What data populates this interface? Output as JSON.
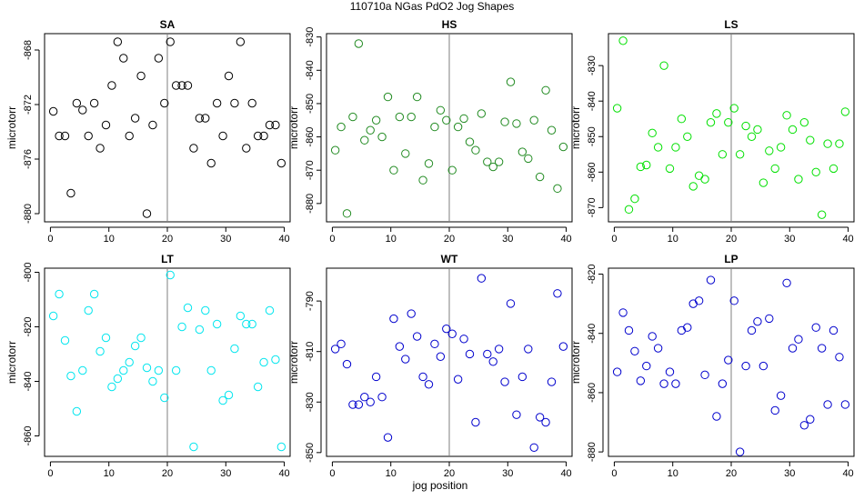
{
  "figure": {
    "title": "110710a   NGas PdO2 Jog Shapes",
    "xlabel": "jog position"
  },
  "chart_data": [
    {
      "type": "scatter",
      "title": "SA",
      "ylabel": "microtorr",
      "color": "#000000",
      "xlim": [
        -1,
        41
      ],
      "ylim": [
        -880.6,
        -866.8
      ],
      "xticks": [
        0,
        10,
        20,
        30,
        40
      ],
      "yticks": [
        -868,
        -872,
        -876,
        -880
      ],
      "vline": 20,
      "x": [
        0.5,
        1.5,
        2.5,
        3.5,
        4.5,
        5.5,
        6.5,
        7.5,
        8.5,
        9.5,
        10.5,
        11.5,
        12.5,
        13.5,
        14.5,
        15.5,
        16.5,
        17.5,
        18.5,
        19.5,
        20.5,
        21.5,
        22.5,
        23.5,
        24.5,
        25.5,
        26.5,
        27.5,
        28.5,
        29.5,
        30.5,
        31.5,
        32.5,
        33.5,
        34.5,
        35.5,
        36.5,
        37.5,
        38.5,
        39.5
      ],
      "y": [
        -872.5,
        -874.3,
        -874.3,
        -878.5,
        -871.9,
        -872.4,
        -874.3,
        -871.9,
        -875.2,
        -873.5,
        -870.6,
        -867.4,
        -868.6,
        -874.3,
        -873.0,
        -869.9,
        -880.0,
        -873.5,
        -868.6,
        -871.9,
        -867.4,
        -870.6,
        -870.6,
        -870.6,
        -875.2,
        -873.0,
        -873.0,
        -876.3,
        -871.9,
        -874.3,
        -869.9,
        -871.9,
        -867.4,
        -875.2,
        -871.9,
        -874.3,
        -874.3,
        -873.5,
        -873.5,
        -876.3
      ]
    },
    {
      "type": "scatter",
      "title": "HS",
      "ylabel": "microtorr",
      "color": "#228b22",
      "xlim": [
        -1,
        41
      ],
      "ylim": [
        -885.5,
        -829
      ],
      "xticks": [
        0,
        10,
        20,
        30,
        40
      ],
      "yticks": [
        -830,
        -840,
        -850,
        -860,
        -870,
        -880
      ],
      "vline": 20,
      "x": [
        0.5,
        1.5,
        2.5,
        3.5,
        4.5,
        5.5,
        6.5,
        7.5,
        8.5,
        9.5,
        10.5,
        11.5,
        12.5,
        13.5,
        14.5,
        15.5,
        16.5,
        17.5,
        18.5,
        19.5,
        20.5,
        21.5,
        22.5,
        23.5,
        24.5,
        25.5,
        26.5,
        27.5,
        28.5,
        29.5,
        30.5,
        31.5,
        32.5,
        33.5,
        34.5,
        35.5,
        36.5,
        37.5,
        38.5,
        39.5
      ],
      "y": [
        -864,
        -857,
        -883,
        -854,
        -832,
        -861,
        -858,
        -855,
        -860,
        -848,
        -870,
        -854,
        -865,
        -854,
        -848,
        -873,
        -868,
        -857,
        -852,
        -855,
        -870,
        -857,
        -854.5,
        -861.5,
        -864,
        -853,
        -867.5,
        -869,
        -867.5,
        -855.5,
        -843.5,
        -856,
        -864.5,
        -866.5,
        -855,
        -872,
        -846,
        -858,
        -875.5,
        -863
      ]
    },
    {
      "type": "scatter",
      "title": "LS",
      "ylabel": "microtorr",
      "color": "#00e000",
      "xlim": [
        -1,
        41
      ],
      "ylim": [
        -874,
        -821
      ],
      "xticks": [
        0,
        10,
        20,
        30,
        40
      ],
      "yticks": [
        -830,
        -840,
        -850,
        -860,
        -870
      ],
      "vline": 20,
      "x": [
        0.5,
        1.5,
        2.5,
        3.5,
        4.5,
        5.5,
        6.5,
        7.5,
        8.5,
        9.5,
        10.5,
        11.5,
        12.5,
        13.5,
        14.5,
        15.5,
        16.5,
        17.5,
        18.5,
        19.5,
        20.5,
        21.5,
        22.5,
        23.5,
        24.5,
        25.5,
        26.5,
        27.5,
        28.5,
        29.5,
        30.5,
        31.5,
        32.5,
        33.5,
        34.5,
        35.5,
        36.5,
        37.5,
        38.5,
        39.5
      ],
      "y": [
        -842,
        -823,
        -870.5,
        -867.5,
        -858.5,
        -858,
        -849,
        -853,
        -830,
        -859,
        -853,
        -845,
        -850,
        -864,
        -861,
        -862,
        -846,
        -843.5,
        -855,
        -846,
        -842,
        -855,
        -847,
        -850,
        -848,
        -863,
        -854,
        -859,
        -853,
        -844,
        -848,
        -862,
        -846,
        -851,
        -860,
        -872,
        -852,
        -859,
        -852,
        -843
      ]
    },
    {
      "type": "scatter",
      "title": "LT",
      "ylabel": "microtorr",
      "color": "#00e5ee",
      "xlim": [
        -1,
        41
      ],
      "ylim": [
        -867.5,
        -798.5
      ],
      "xticks": [
        0,
        10,
        20,
        30,
        40
      ],
      "yticks": [
        -800,
        -820,
        -840,
        -860
      ],
      "vline": 20,
      "x": [
        0.5,
        1.5,
        2.5,
        3.5,
        4.5,
        5.5,
        6.5,
        7.5,
        8.5,
        9.5,
        10.5,
        11.5,
        12.5,
        13.5,
        14.5,
        15.5,
        16.5,
        17.5,
        18.5,
        19.5,
        20.5,
        21.5,
        22.5,
        23.5,
        24.5,
        25.5,
        26.5,
        27.5,
        28.5,
        29.5,
        30.5,
        31.5,
        32.5,
        33.5,
        34.5,
        35.5,
        36.5,
        37.5,
        38.5,
        39.5
      ],
      "y": [
        -816,
        -808,
        -825,
        -838,
        -851,
        -836,
        -814,
        -808,
        -829,
        -824,
        -842,
        -839,
        -836,
        -833,
        -827,
        -824,
        -835,
        -840,
        -836,
        -846,
        -801,
        -836,
        -820,
        -813,
        -864,
        -821,
        -814,
        -836,
        -819,
        -847,
        -845,
        -828,
        -816,
        -819,
        -819,
        -842,
        -833,
        -814,
        -832,
        -864
      ]
    },
    {
      "type": "scatter",
      "title": "WT",
      "ylabel": "microtorr",
      "color": "#0000cd",
      "xlim": [
        -1,
        41
      ],
      "ylim": [
        -851.5,
        -777
      ],
      "xticks": [
        0,
        10,
        20,
        30,
        40
      ],
      "yticks": [
        -790,
        -810,
        -830,
        -850
      ],
      "vline": 20,
      "x": [
        0.5,
        1.5,
        2.5,
        3.5,
        4.5,
        5.5,
        6.5,
        7.5,
        8.5,
        9.5,
        10.5,
        11.5,
        12.5,
        13.5,
        14.5,
        15.5,
        16.5,
        17.5,
        18.5,
        19.5,
        20.5,
        21.5,
        22.5,
        23.5,
        24.5,
        25.5,
        26.5,
        27.5,
        28.5,
        29.5,
        30.5,
        31.5,
        32.5,
        33.5,
        34.5,
        35.5,
        36.5,
        37.5,
        38.5,
        39.5
      ],
      "y": [
        -809,
        -807,
        -815,
        -831,
        -831,
        -828,
        -830,
        -820,
        -828,
        -844,
        -797,
        -808,
        -813,
        -795,
        -804,
        -820,
        -823,
        -807,
        -812,
        -801,
        -803,
        -821,
        -805,
        -811,
        -838,
        -781,
        -811,
        -814,
        -809,
        -822,
        -791,
        -835,
        -820,
        -809,
        -848,
        -836,
        -838,
        -822,
        -787,
        -808
      ]
    },
    {
      "type": "scatter",
      "title": "LP",
      "ylabel": "microtorr",
      "color": "#0000cd",
      "xlim": [
        -1,
        41
      ],
      "ylim": [
        -881.5,
        -818
      ],
      "xticks": [
        0,
        10,
        20,
        30,
        40
      ],
      "yticks": [
        -820,
        -840,
        -860,
        -880
      ],
      "vline": 20,
      "x": [
        0.5,
        1.5,
        2.5,
        3.5,
        4.5,
        5.5,
        6.5,
        7.5,
        8.5,
        9.5,
        10.5,
        11.5,
        12.5,
        13.5,
        14.5,
        15.5,
        16.5,
        17.5,
        18.5,
        19.5,
        20.5,
        21.5,
        22.5,
        23.5,
        24.5,
        25.5,
        26.5,
        27.5,
        28.5,
        29.5,
        30.5,
        31.5,
        32.5,
        33.5,
        34.5,
        35.5,
        36.5,
        37.5,
        38.5,
        39.5
      ],
      "y": [
        -853,
        -833,
        -839,
        -846,
        -856,
        -851,
        -841,
        -845,
        -857,
        -853,
        -857,
        -839,
        -838,
        -830,
        -829,
        -854,
        -822,
        -868,
        -857,
        -849,
        -829,
        -880,
        -851,
        -839,
        -836,
        -851,
        -835,
        -866,
        -861,
        -823,
        -845,
        -842,
        -871,
        -869,
        -838,
        -845,
        -864,
        -839,
        -848,
        -864
      ]
    }
  ]
}
